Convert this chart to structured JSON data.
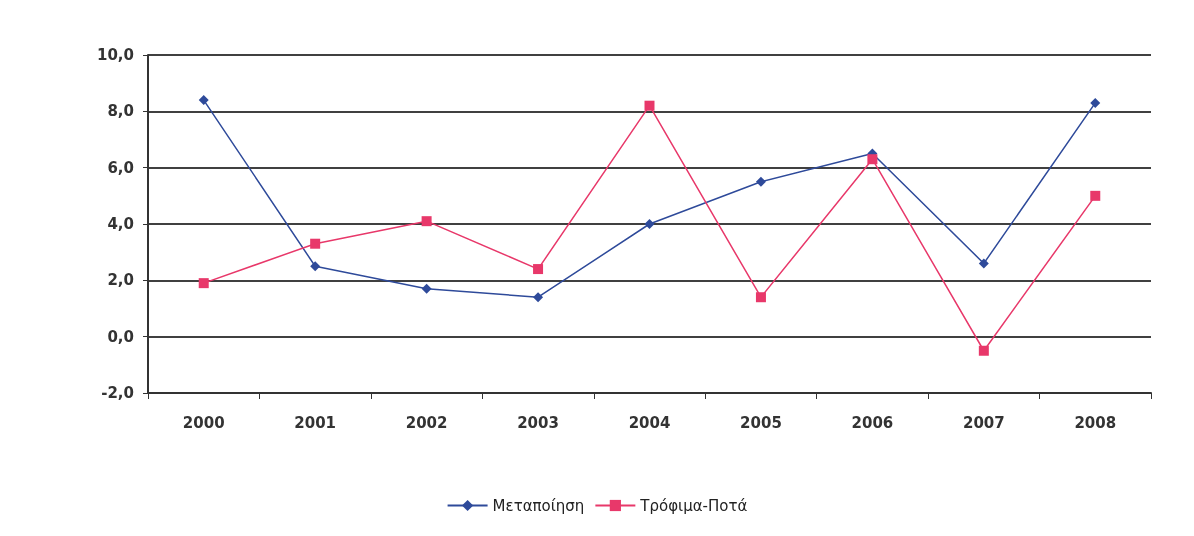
{
  "chart_data": {
    "type": "line",
    "categories": [
      "2000",
      "2001",
      "2002",
      "2003",
      "2004",
      "2005",
      "2006",
      "2007",
      "2008"
    ],
    "series": [
      {
        "name": "Μεταποίηση",
        "color": "#2e4a9a",
        "marker": "diamond",
        "values": [
          8.4,
          2.5,
          1.7,
          1.4,
          4.0,
          5.5,
          6.5,
          2.6,
          8.3
        ]
      },
      {
        "name": "Τρόφιμα-Ποτά",
        "color": "#e8386a",
        "marker": "square",
        "values": [
          1.9,
          3.3,
          4.1,
          2.4,
          8.2,
          1.4,
          6.3,
          -0.5,
          5.0
        ]
      }
    ],
    "ylim": [
      -2,
      10
    ],
    "yticks": [
      {
        "value": -2,
        "label": "-2,0"
      },
      {
        "value": 0,
        "label": "0,0"
      },
      {
        "value": 2,
        "label": "2,0"
      },
      {
        "value": 4,
        "label": "4,0"
      },
      {
        "value": 6,
        "label": "6,0"
      },
      {
        "value": 8,
        "label": "8,0"
      },
      {
        "value": 10,
        "label": "10,0"
      }
    ],
    "grid": "y",
    "legend": "bottom",
    "line_style": "solid"
  }
}
